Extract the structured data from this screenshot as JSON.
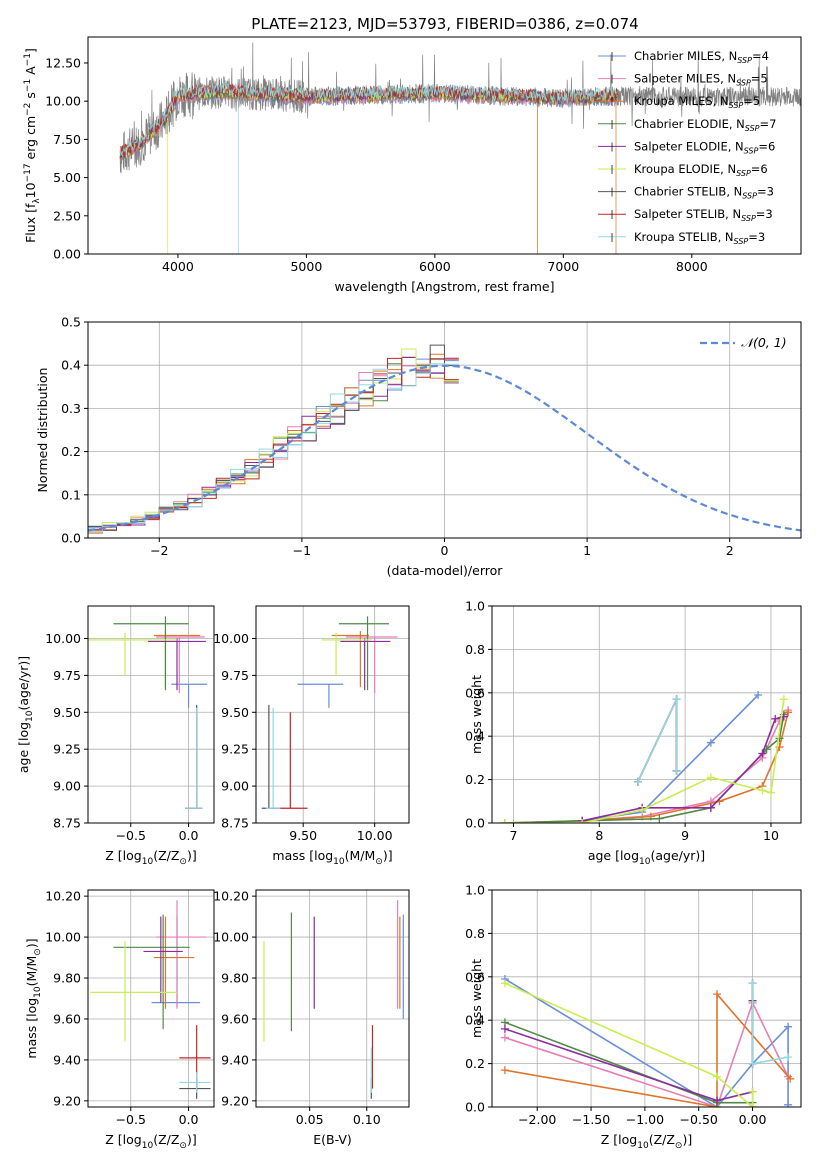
{
  "title": "PLATE=2123, MJD=53793, FIBERID=0386, z=0.074",
  "colors": {
    "chabrier_miles": "#6a8ed8",
    "salpeter_miles": "#e77fb6",
    "kroupa_miles": "#e0742a",
    "chabrier_elodie": "#4f8a46",
    "salpeter_elodie": "#8a2c9e",
    "kroupa_elodie": "#c9ee52",
    "chabrier_stelib": "#555555",
    "salpeter_stelib": "#c42525",
    "kroupa_stelib": "#8fd9e6",
    "data": "#808080",
    "normal": "#5b8ad6",
    "grid": "#b0b0b0"
  },
  "chart_data": [
    {
      "id": "spectrum",
      "type": "line",
      "title": "PLATE=2123, MJD=53793, FIBERID=0386, z=0.074",
      "xlabel": "wavelength [Angstrom, rest frame]",
      "ylabel": "Flux [f$_{\\lambda}$10$^{-17}$ erg cm$^{-2}$ s$^{-1}$ A$^{-1}$]",
      "xlim": [
        3300,
        8850
      ],
      "ylim": [
        0,
        14.2
      ],
      "xticks": [
        4000,
        5000,
        6000,
        7000,
        8000
      ],
      "yticks": [
        0.0,
        2.5,
        5.0,
        7.5,
        10.0,
        12.5
      ],
      "legend_position": "upper-right",
      "legend": [
        {
          "base": "Chabrier MILES, N",
          "sub": "SSP",
          "tail": "=4"
        },
        {
          "base": "Salpeter MILES, N",
          "sub": "SSP",
          "tail": "=5"
        },
        {
          "base": "Kroupa MILES, N",
          "sub": "SSP",
          "tail": "=5"
        },
        {
          "base": "Chabrier ELODIE, N",
          "sub": "SSP",
          "tail": "=7"
        },
        {
          "base": "Salpeter ELODIE, N",
          "sub": "SSP",
          "tail": "=6"
        },
        {
          "base": "Kroupa ELODIE, N",
          "sub": "SSP",
          "tail": "=6"
        },
        {
          "base": "Chabrier STELIB, N",
          "sub": "SSP",
          "tail": "=3"
        },
        {
          "base": "Salpeter STELIB, N",
          "sub": "SSP",
          "tail": "=3"
        },
        {
          "base": "Kroupa STELIB, N",
          "sub": "SSP",
          "tail": "=3"
        }
      ],
      "data_wavelength_range": [
        3550,
        8850
      ],
      "continuum": [
        [
          3550,
          6.5
        ],
        [
          3700,
          7.2
        ],
        [
          3900,
          8.8
        ],
        [
          4000,
          10.4
        ],
        [
          4300,
          10.6
        ],
        [
          5000,
          10.3
        ],
        [
          6000,
          10.5
        ],
        [
          7000,
          10.2
        ],
        [
          7300,
          10.3
        ],
        [
          8850,
          10.3
        ]
      ],
      "model_range": [
        3550,
        7420
      ],
      "model_dropouts": [
        {
          "series": "kroupa_elodie",
          "x": 3920
        },
        {
          "series": "kroupa_stelib",
          "x": 4470
        },
        {
          "series": "kroupa_miles",
          "x": 6800
        },
        {
          "series": "kroupa_miles",
          "x": 7410
        }
      ]
    },
    {
      "id": "residuals",
      "type": "histogram",
      "xlabel": "(data-model)/error",
      "ylabel": "Normed distribution",
      "xlim": [
        -2.5,
        2.5
      ],
      "ylim": [
        0,
        0.5
      ],
      "xticks": [
        -2,
        -1,
        0,
        1,
        2
      ],
      "yticks": [
        0.0,
        0.1,
        0.2,
        0.3,
        0.4,
        0.5
      ],
      "reference_curve": {
        "name": "N(0,1)",
        "mu": 0,
        "sigma": 1
      },
      "bin_width": 0.1,
      "bin_start": -2.5,
      "density_source": "normal"
    },
    {
      "id": "age_vs_Z",
      "type": "scatter",
      "xlabel": "Z [log$_{10}$(Z/Z$_\\odot$)]",
      "ylabel": "age  [log$_{10}$(age/yr)]",
      "xlim": [
        -0.87,
        0.22
      ],
      "ylim": [
        8.75,
        10.22
      ],
      "xticks": [
        -0.5,
        0.0
      ],
      "yticks": [
        8.75,
        9.0,
        9.25,
        9.5,
        9.75,
        10.0
      ],
      "points": [
        {
          "s": "chabrier_miles",
          "x": 0.0,
          "xe": [
            0.15,
            0.16
          ],
          "y": 9.69,
          "ye": [
            0.16,
            0.0
          ]
        },
        {
          "s": "salpeter_miles",
          "x": -0.08,
          "xe": [
            0.2,
            0.22
          ],
          "y": 10.01,
          "ye": [
            0.38,
            0.0
          ]
        },
        {
          "s": "kroupa_miles",
          "x": -0.2,
          "xe": [
            0.1,
            0.3
          ],
          "y": 10.02,
          "ye": [
            0.35,
            0.03
          ]
        },
        {
          "s": "chabrier_elodie",
          "x": -0.2,
          "xe": [
            0.45,
            0.2
          ],
          "y": 10.1,
          "ye": [
            0.45,
            0.05
          ]
        },
        {
          "s": "salpeter_elodie",
          "x": -0.1,
          "xe": [
            0.25,
            0.25
          ],
          "y": 9.98,
          "ye": [
            0.33,
            0.02
          ]
        },
        {
          "s": "kroupa_elodie",
          "x": -0.55,
          "xe": [
            0.32,
            0.45
          ],
          "y": 9.99,
          "ye": [
            0.24,
            0.05
          ]
        },
        {
          "s": "chabrier_stelib",
          "x": 0.07,
          "xe": [
            0.1,
            0.05
          ],
          "y": 8.85,
          "ye": [
            0.0,
            0.7
          ]
        },
        {
          "s": "salpeter_stelib",
          "x": 0.07,
          "xe": [
            0.1,
            0.05
          ],
          "y": 8.85,
          "ye": [
            0.0,
            0.65
          ]
        },
        {
          "s": "kroupa_stelib",
          "x": 0.07,
          "xe": [
            0.1,
            0.05
          ],
          "y": 8.85,
          "ye": [
            0.0,
            0.68
          ]
        }
      ]
    },
    {
      "id": "age_vs_mass",
      "type": "scatter",
      "xlabel": "mass [log$_{10}$(M/M$_\\odot$)]",
      "ylabel": "",
      "xlim": [
        9.17,
        10.24
      ],
      "ylim": [
        8.75,
        10.22
      ],
      "xticks": [
        9.5,
        10.0
      ],
      "yticks": [
        8.75,
        9.0,
        9.25,
        9.5,
        9.75,
        10.0
      ],
      "points": [
        {
          "s": "chabrier_miles",
          "x": 9.68,
          "xe": [
            0.22,
            0.1
          ],
          "y": 9.69,
          "ye": [
            0.16,
            0.0
          ]
        },
        {
          "s": "salpeter_miles",
          "x": 10.0,
          "xe": [
            0.2,
            0.16
          ],
          "y": 10.01,
          "ye": [
            0.38,
            0.0
          ]
        },
        {
          "s": "kroupa_miles",
          "x": 9.9,
          "xe": [
            0.2,
            0.06
          ],
          "y": 10.02,
          "ye": [
            0.35,
            0.03
          ]
        },
        {
          "s": "chabrier_elodie",
          "x": 9.95,
          "xe": [
            0.2,
            0.15
          ],
          "y": 10.1,
          "ye": [
            0.45,
            0.05
          ]
        },
        {
          "s": "salpeter_elodie",
          "x": 9.93,
          "xe": [
            0.17,
            0.18
          ],
          "y": 9.98,
          "ye": [
            0.33,
            0.02
          ]
        },
        {
          "s": "kroupa_elodie",
          "x": 9.73,
          "xe": [
            0.1,
            0.25
          ],
          "y": 9.99,
          "ye": [
            0.24,
            0.05
          ]
        },
        {
          "s": "chabrier_stelib",
          "x": 9.26,
          "xe": [
            0.05,
            0.05
          ],
          "y": 8.85,
          "ye": [
            0.0,
            0.7
          ]
        },
        {
          "s": "salpeter_stelib",
          "x": 9.41,
          "xe": [
            0.12,
            0.12
          ],
          "y": 8.85,
          "ye": [
            0.0,
            0.65
          ]
        },
        {
          "s": "kroupa_stelib",
          "x": 9.29,
          "xe": [
            0.05,
            0.05
          ],
          "y": 8.85,
          "ye": [
            0.0,
            0.68
          ]
        }
      ]
    },
    {
      "id": "mass_weight_vs_age",
      "type": "line",
      "xlabel": "age  [log$_{10}$(age/yr)]",
      "ylabel": "mass weight",
      "xlim": [
        6.75,
        10.35
      ],
      "ylim": [
        0,
        1
      ],
      "xticks": [
        7,
        8,
        9,
        10
      ],
      "yticks": [
        0.0,
        0.2,
        0.4,
        0.6,
        0.8,
        1.0
      ],
      "series": [
        {
          "s": "chabrier_miles",
          "x": [
            7.8,
            8.5,
            9.3,
            9.85
          ],
          "y": [
            0.01,
            0.05,
            0.37,
            0.59
          ]
        },
        {
          "s": "salpeter_miles",
          "x": [
            7.8,
            8.5,
            9.3,
            9.9,
            10.1,
            10.2
          ],
          "y": [
            0.01,
            0.03,
            0.1,
            0.3,
            0.47,
            0.52
          ]
        },
        {
          "s": "kroupa_miles",
          "x": [
            6.9,
            7.8,
            8.6,
            9.4,
            9.9,
            10.1,
            10.2
          ],
          "y": [
            0.0,
            0.01,
            0.03,
            0.1,
            0.17,
            0.35,
            0.51
          ]
        },
        {
          "s": "chabrier_elodie",
          "x": [
            6.9,
            7.8,
            8.7,
            9.3,
            9.95,
            10.1,
            10.15
          ],
          "y": [
            0.0,
            0.01,
            0.02,
            0.07,
            0.34,
            0.39,
            0.5
          ]
        },
        {
          "s": "salpeter_elodie",
          "x": [
            7.8,
            8.5,
            9.3,
            9.9,
            10.05,
            10.15
          ],
          "y": [
            0.01,
            0.07,
            0.07,
            0.32,
            0.48,
            0.49
          ]
        },
        {
          "s": "kroupa_elodie",
          "x": [
            6.9,
            7.8,
            8.5,
            9.3,
            9.9,
            10.0,
            10.15
          ],
          "y": [
            0.0,
            0.0,
            0.06,
            0.21,
            0.15,
            0.14,
            0.57
          ]
        },
        {
          "s": "chabrier_stelib",
          "x": [
            8.45,
            8.9,
            8.9
          ],
          "y": [
            0.19,
            0.57,
            0.24
          ]
        },
        {
          "s": "salpeter_stelib",
          "x": [
            8.45,
            8.9,
            8.9
          ],
          "y": [
            0.19,
            0.57,
            0.24
          ]
        },
        {
          "s": "kroupa_stelib",
          "x": [
            8.45,
            8.9,
            8.9
          ],
          "y": [
            0.19,
            0.57,
            0.24
          ]
        }
      ]
    },
    {
      "id": "mass_vs_Z",
      "type": "scatter",
      "xlabel": "Z [log$_{10}$(Z/Z$_\\odot$)]",
      "ylabel": "mass [log$_{10}$(M/M$_\\odot$)]",
      "xlim": [
        -0.87,
        0.22
      ],
      "ylim": [
        9.17,
        10.23
      ],
      "xticks": [
        -0.5,
        0.0
      ],
      "yticks": [
        9.2,
        9.4,
        9.6,
        9.8,
        10.0,
        10.2
      ],
      "points": [
        {
          "s": "chabrier_miles",
          "x": -0.1,
          "xe": [
            0.22,
            0.2
          ],
          "y": 9.68,
          "ye": [
            0.02,
            0.42
          ]
        },
        {
          "s": "salpeter_miles",
          "x": -0.1,
          "xe": [
            0.18,
            0.25
          ],
          "y": 10.0,
          "ye": [
            0.35,
            0.18
          ]
        },
        {
          "s": "kroupa_miles",
          "x": -0.2,
          "xe": [
            0.1,
            0.25
          ],
          "y": 9.9,
          "ye": [
            0.25,
            0.2
          ]
        },
        {
          "s": "chabrier_elodie",
          "x": -0.22,
          "xe": [
            0.43,
            0.23
          ],
          "y": 9.95,
          "ye": [
            0.4,
            0.16
          ]
        },
        {
          "s": "salpeter_elodie",
          "x": -0.24,
          "xe": [
            0.15,
            0.19
          ],
          "y": 9.93,
          "ye": [
            0.25,
            0.17
          ]
        },
        {
          "s": "kroupa_elodie",
          "x": -0.55,
          "xe": [
            0.3,
            0.45
          ],
          "y": 9.73,
          "ye": [
            0.24,
            0.25
          ]
        },
        {
          "s": "chabrier_stelib",
          "x": 0.07,
          "xe": [
            0.15,
            0.12
          ],
          "y": 9.26,
          "ye": [
            0.05,
            0.05
          ]
        },
        {
          "s": "salpeter_stelib",
          "x": 0.07,
          "xe": [
            0.15,
            0.12
          ],
          "y": 9.41,
          "ye": [
            0.15,
            0.16
          ]
        },
        {
          "s": "kroupa_stelib",
          "x": 0.07,
          "xe": [
            0.15,
            0.12
          ],
          "y": 9.29,
          "ye": [
            0.05,
            0.05
          ]
        }
      ]
    },
    {
      "id": "mass_vs_ebv",
      "type": "scatter",
      "xlabel": "E(B-V)",
      "ylabel": "",
      "xlim": [
        0.003,
        0.137
      ],
      "ylim": [
        9.17,
        10.23
      ],
      "xticks": [
        0.05,
        0.1
      ],
      "yticks": [
        9.2,
        9.4,
        9.6,
        9.8,
        10.0,
        10.2
      ],
      "points": [
        {
          "s": "chabrier_miles",
          "x": 0.132,
          "xe": [
            0,
            0
          ],
          "y": 9.68,
          "ye": [
            0.08,
            0.43
          ]
        },
        {
          "s": "salpeter_miles",
          "x": 0.127,
          "xe": [
            0,
            0
          ],
          "y": 10.0,
          "ye": [
            0.35,
            0.18
          ]
        },
        {
          "s": "kroupa_miles",
          "x": 0.129,
          "xe": [
            0,
            0
          ],
          "y": 9.9,
          "ye": [
            0.25,
            0.2
          ]
        },
        {
          "s": "chabrier_elodie",
          "x": 0.034,
          "xe": [
            0,
            0
          ],
          "y": 9.95,
          "ye": [
            0.41,
            0.17
          ]
        },
        {
          "s": "salpeter_elodie",
          "x": 0.054,
          "xe": [
            0,
            0
          ],
          "y": 9.93,
          "ye": [
            0.28,
            0.17
          ]
        },
        {
          "s": "kroupa_elodie",
          "x": 0.01,
          "xe": [
            0,
            0
          ],
          "y": 9.73,
          "ye": [
            0.24,
            0.25
          ]
        },
        {
          "s": "chabrier_stelib",
          "x": 0.104,
          "xe": [
            0,
            0
          ],
          "y": 9.26,
          "ye": [
            0.05,
            0.05
          ]
        },
        {
          "s": "salpeter_stelib",
          "x": 0.105,
          "xe": [
            0,
            0
          ],
          "y": 9.41,
          "ye": [
            0.15,
            0.16
          ]
        },
        {
          "s": "kroupa_stelib",
          "x": 0.104,
          "xe": [
            0,
            0
          ],
          "y": 9.29,
          "ye": [
            0.05,
            0.17
          ]
        }
      ]
    },
    {
      "id": "mass_weight_vs_Z",
      "type": "line",
      "xlabel": "Z [log$_{10}$(Z/Z$_\\odot$)]",
      "ylabel": "mass weight",
      "xlim": [
        -2.42,
        0.45
      ],
      "ylim": [
        0,
        1
      ],
      "xticks": [
        -2.0,
        -1.5,
        -1.0,
        -0.5,
        0.0
      ],
      "yticks": [
        0.0,
        0.2,
        0.4,
        0.6,
        0.8,
        1.0
      ],
      "series": [
        {
          "s": "chabrier_miles",
          "x": [
            -2.3,
            -0.33,
            0.0,
            0.33,
            0.33
          ],
          "y": [
            0.59,
            0.0,
            0.2,
            0.37,
            0.01
          ]
        },
        {
          "s": "salpeter_miles",
          "x": [
            -2.3,
            -0.33,
            0.0,
            0.33
          ],
          "y": [
            0.32,
            0.0,
            0.48,
            0.14
          ]
        },
        {
          "s": "kroupa_miles",
          "x": [
            -2.3,
            -0.33,
            -0.33,
            0.35
          ],
          "y": [
            0.17,
            0.0,
            0.52,
            0.13
          ]
        },
        {
          "s": "chabrier_elodie",
          "x": [
            -2.3,
            -0.33,
            0.0,
            0.0
          ],
          "y": [
            0.39,
            0.02,
            0.02,
            0.0
          ]
        },
        {
          "s": "salpeter_elodie",
          "x": [
            -2.3,
            -0.33,
            0.0
          ],
          "y": [
            0.36,
            0.03,
            0.07
          ]
        },
        {
          "s": "kroupa_elodie",
          "x": [
            -2.3,
            -0.33,
            0.0,
            0.0
          ],
          "y": [
            0.57,
            0.14,
            0.0,
            0.07
          ]
        },
        {
          "s": "chabrier_stelib",
          "x": [
            0.0,
            0.0,
            0.0
          ],
          "y": [
            0.2,
            0.57,
            0.49
          ]
        },
        {
          "s": "salpeter_stelib",
          "x": [
            0.0,
            0.0
          ],
          "y": [
            0.2,
            0.57
          ]
        },
        {
          "s": "kroupa_stelib",
          "x": [
            0.0,
            0.0,
            0.33
          ],
          "y": [
            0.57,
            0.2,
            0.23
          ]
        }
      ]
    }
  ]
}
